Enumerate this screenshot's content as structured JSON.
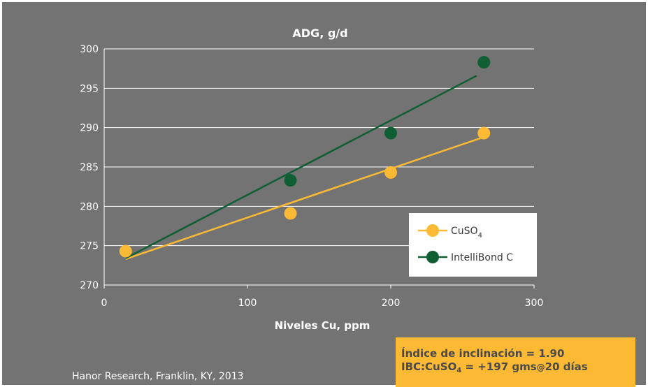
{
  "chart_data": {
    "type": "scatter",
    "title": "ADG, g/d",
    "xlabel": "Niveles Cu, ppm",
    "ylabel": "",
    "xlim": [
      0,
      300
    ],
    "ylim": [
      270,
      300
    ],
    "x_ticks": [
      "0",
      "100",
      "200",
      "300"
    ],
    "y_ticks": [
      "270",
      "275",
      "280",
      "285",
      "290",
      "295",
      "300"
    ],
    "grid": "horizontal",
    "legend_position": "right",
    "series": [
      {
        "name_main": "CuSO",
        "name_sub": "4",
        "color": "#fbb934",
        "x": [
          15,
          130,
          200,
          265
        ],
        "y": [
          274.3,
          279.1,
          284.3,
          289.3
        ],
        "trend": {
          "x": [
            15,
            265
          ],
          "y": [
            273.3,
            288.8
          ]
        }
      },
      {
        "name_main": "IntelliBond C",
        "name_sub": "",
        "color": "#0f5e34",
        "x": [
          130,
          200,
          265
        ],
        "y": [
          283.3,
          289.3,
          298.3
        ],
        "trend": {
          "x": [
            15,
            260
          ],
          "y": [
            273.4,
            296.6
          ]
        }
      }
    ]
  },
  "source": "Hanor Research, Franklin, KY, 2013",
  "note": {
    "line1": "Índice de inclinación = 1.90",
    "line2_a": "IBC:CuSO",
    "line2_sub": "4",
    "line2_b": " = +197 gms",
    "line2_at": "@",
    "line2_c": "20 días"
  },
  "colors": {
    "background": "#737373",
    "grid": "#ffffff",
    "legend_bg": "#ffffff"
  }
}
